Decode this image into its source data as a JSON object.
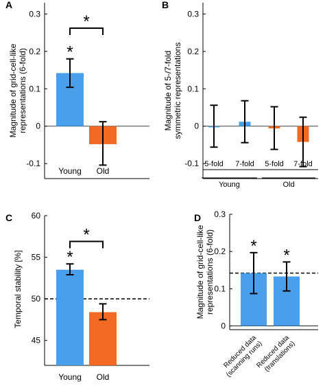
{
  "colors": {
    "young": "#4a9fea",
    "old": "#f26a21",
    "axis": "#000000"
  },
  "chart_data": [
    {
      "panel_label": "A",
      "type": "bar",
      "ylabel": [
        "Magnitude of grid-cell-like",
        "representations (6-fold)"
      ],
      "ylim": [
        -0.14,
        0.33
      ],
      "yticks": [
        -0.1,
        0,
        0.1,
        0.2,
        0.3
      ],
      "ytick_labels": [
        "-0.1",
        "0",
        "0.1",
        "0.2",
        "0.3"
      ],
      "categories": [
        "Young",
        "Old"
      ],
      "values": [
        0.142,
        -0.048
      ],
      "err_low": [
        0.104,
        -0.104
      ],
      "err_high": [
        0.18,
        0.012
      ],
      "bar_colors": [
        "young",
        "old"
      ],
      "bar_stars": [
        "*",
        ""
      ],
      "bracket": {
        "from": 0,
        "to": 1,
        "y": 0.262,
        "label": "*"
      }
    },
    {
      "panel_label": "B",
      "type": "bar",
      "ylabel": [
        "Magnitude of 5-/7-fold",
        "symmetric representations"
      ],
      "ylim": [
        -0.14,
        0.33
      ],
      "yticks": [
        -0.1,
        0,
        0.1,
        0.2,
        0.3
      ],
      "ytick_labels": [
        "-0.1",
        "0",
        "0.1",
        "0.2",
        "0.3"
      ],
      "categories": [
        "5-fold",
        "7-fold",
        "5-fold",
        "7-fold"
      ],
      "values": [
        -0.003,
        0.012,
        -0.006,
        -0.042
      ],
      "err_low": [
        -0.056,
        -0.044,
        -0.062,
        -0.108
      ],
      "err_high": [
        0.056,
        0.068,
        0.052,
        0.024
      ],
      "bar_colors": [
        "young",
        "young",
        "old",
        "old"
      ],
      "groups": [
        {
          "label": "Young",
          "from": 0,
          "to": 1
        },
        {
          "label": "Old",
          "from": 2,
          "to": 3
        }
      ]
    },
    {
      "panel_label": "C",
      "type": "bar",
      "ylabel": [
        "Temporal stability [%]"
      ],
      "ylim": [
        42,
        60
      ],
      "yticks": [
        45,
        50,
        55,
        60
      ],
      "ytick_labels": [
        "45",
        "50",
        "55",
        "60"
      ],
      "categories": [
        "Young",
        "Old"
      ],
      "values": [
        53.5,
        48.4
      ],
      "err_low": [
        52.9,
        47.5
      ],
      "err_high": [
        54.2,
        49.4
      ],
      "bar_colors": [
        "young",
        "old"
      ],
      "bar_stars": [
        "*",
        ""
      ],
      "bracket": {
        "from": 0,
        "to": 1,
        "y": 56.9,
        "label": "*"
      },
      "reference_line": 50
    },
    {
      "panel_label": "D",
      "type": "bar",
      "ylabel": [
        "Magnitude of grid-cell-like",
        "representations (6-fold)"
      ],
      "ylim": [
        -0.01,
        0.3
      ],
      "yticks": [
        0,
        0.1,
        0.2,
        0.3
      ],
      "ytick_labels": [
        "0",
        "0.1",
        "0.2",
        "0.3"
      ],
      "categories": [
        [
          "Reduced data",
          "(scanning runs)"
        ],
        [
          "Reduced data",
          "(translations)"
        ]
      ],
      "values": [
        0.142,
        0.133
      ],
      "err_low": [
        0.087,
        0.094
      ],
      "err_high": [
        0.197,
        0.172
      ],
      "bar_colors": [
        "young",
        "young"
      ],
      "bar_stars": [
        "*",
        "*"
      ],
      "reference_line": 0.142
    }
  ]
}
